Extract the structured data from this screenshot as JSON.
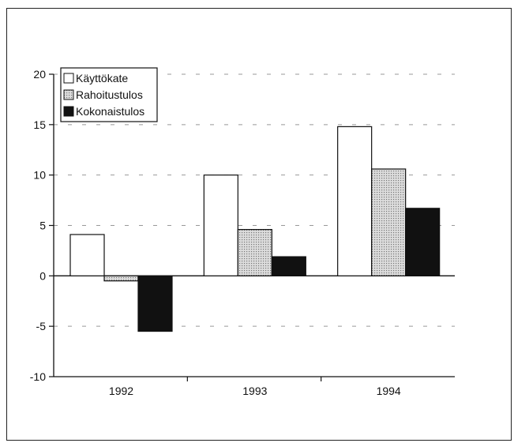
{
  "chart_data": {
    "type": "bar",
    "title": "",
    "xlabel": "",
    "ylabel": "",
    "categories": [
      "1992",
      "1993",
      "1994"
    ],
    "series": [
      {
        "name": "Käyttökate",
        "values": [
          4.1,
          10.0,
          14.8
        ],
        "fill": "white"
      },
      {
        "name": "Rahoitustulos",
        "values": [
          -0.5,
          4.6,
          10.6
        ],
        "fill": "dotted-gray"
      },
      {
        "name": "Kokonaistulos",
        "values": [
          -5.5,
          1.9,
          6.7
        ],
        "fill": "black"
      }
    ],
    "ylim": [
      -10,
      20
    ],
    "yticks": [
      "-10",
      "-5",
      "0",
      "5",
      "10",
      "15",
      "20"
    ],
    "grid": "dashed horizontal",
    "legend_position": "top-left",
    "colors": {
      "stroke": "#111111",
      "pattern_dot": "#777777",
      "pattern_bg": "#dddddd"
    }
  }
}
